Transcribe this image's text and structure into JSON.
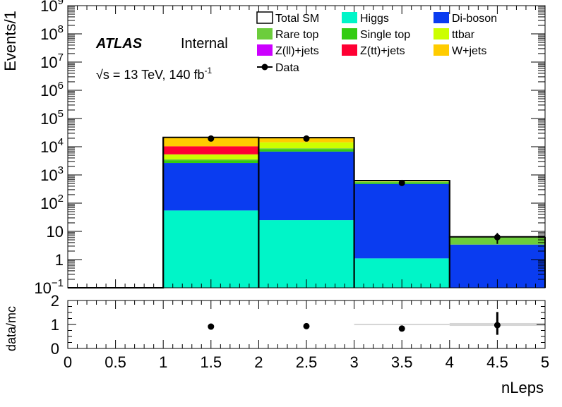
{
  "chart_data": {
    "type": "bar",
    "stacked": true,
    "log_y": true,
    "xlabel": "nLeps",
    "ylabel": "Events/1",
    "xlim": [
      0,
      5
    ],
    "ylim": [
      0.1,
      1000000000
    ],
    "bins": [
      [
        0,
        1
      ],
      [
        1,
        2
      ],
      [
        2,
        3
      ],
      [
        3,
        4
      ],
      [
        4,
        5
      ]
    ],
    "x_ticks": [
      "0",
      "0.5",
      "1",
      "1.5",
      "2",
      "2.5",
      "3",
      "3.5",
      "4",
      "4.5",
      "5"
    ],
    "y_ticks": [
      {
        "value": 0.1,
        "base": "10",
        "exp": "−1"
      },
      {
        "value": 1,
        "base": "1",
        "exp": ""
      },
      {
        "value": 10,
        "base": "10",
        "exp": ""
      },
      {
        "value": 100,
        "base": "10",
        "exp": "2"
      },
      {
        "value": 1000,
        "base": "10",
        "exp": "3"
      },
      {
        "value": 10000,
        "base": "10",
        "exp": "4"
      },
      {
        "value": 100000,
        "base": "10",
        "exp": "5"
      },
      {
        "value": 1000000,
        "base": "10",
        "exp": "6"
      },
      {
        "value": 10000000,
        "base": "10",
        "exp": "7"
      },
      {
        "value": 100000000,
        "base": "10",
        "exp": "8"
      },
      {
        "value": 1000000000,
        "base": "10",
        "exp": "9"
      }
    ],
    "series": [
      {
        "name": "Higgs",
        "color": "#00f5c8",
        "values": [
          0,
          55,
          25,
          1.1,
          0
        ]
      },
      {
        "name": "Di-boson",
        "color": "#0a3cf0",
        "values": [
          0,
          2600,
          6700,
          480,
          3.4
        ]
      },
      {
        "name": "Single top",
        "color": "#33cc11",
        "values": [
          0,
          600,
          1500,
          50,
          0
        ]
      },
      {
        "name": "Rare top",
        "color": "#6ccd3c",
        "values": [
          0,
          300,
          600,
          40,
          2.8
        ]
      },
      {
        "name": "ttbar",
        "color": "#ccff00",
        "values": [
          0,
          1800,
          5500,
          20,
          0.2
        ]
      },
      {
        "name": "Z(tt)+jets",
        "color": "#ff0033",
        "values": [
          0,
          5000,
          0,
          0,
          0
        ]
      },
      {
        "name": "Z(ll)+jets",
        "color": "#cc00ff",
        "values": [
          0,
          0,
          0,
          0,
          0
        ]
      },
      {
        "name": "W+jets",
        "color": "#ffcc00",
        "values": [
          0,
          11000,
          6000,
          0,
          0
        ]
      }
    ],
    "total_sm": {
      "name": "Total SM",
      "values": [
        0.1,
        21500,
        21000,
        630,
        6.4
      ]
    },
    "data": {
      "name": "Data",
      "x": [
        1.5,
        2.5,
        3.5,
        4.5
      ],
      "y": [
        19500,
        19500,
        520,
        6.2
      ],
      "yerr_low": [
        0,
        0,
        0,
        2.6
      ],
      "yerr_high": [
        0,
        0,
        0,
        2.6
      ]
    },
    "ratio": {
      "ylabel": "data/mc",
      "ylim": [
        0,
        2
      ],
      "y_ticks": [
        "0",
        "1",
        "2"
      ],
      "x": [
        1.5,
        2.5,
        3.5,
        4.5
      ],
      "y": [
        0.91,
        0.93,
        0.83,
        0.97
      ],
      "yerr_low": [
        0,
        0,
        0,
        0.4
      ],
      "yerr_high": [
        0,
        0,
        0,
        0.55
      ],
      "uncertainty_band": [
        {
          "x_range": [
            3,
            4
          ],
          "half_width": 0.03
        },
        {
          "x_range": [
            4,
            5
          ],
          "half_width": 0.06
        }
      ]
    },
    "legend": {
      "placement": "top-right",
      "entries": [
        {
          "label": "Total SM",
          "color": "#ffffff",
          "kind": "box"
        },
        {
          "label": "Higgs",
          "color": "#00f5c8",
          "kind": "fill"
        },
        {
          "label": "Di-boson",
          "color": "#0a3cf0",
          "kind": "fill"
        },
        {
          "label": "Rare top",
          "color": "#6ccd3c",
          "kind": "fill"
        },
        {
          "label": "Single top",
          "color": "#33cc11",
          "kind": "fill"
        },
        {
          "label": "ttbar",
          "color": "#ccff00",
          "kind": "fill"
        },
        {
          "label": "Z(ll)+jets",
          "color": "#cc00ff",
          "kind": "fill"
        },
        {
          "label": "Z(tt)+jets",
          "color": "#ff0033",
          "kind": "fill"
        },
        {
          "label": "W+jets",
          "color": "#ffcc00",
          "kind": "fill"
        },
        {
          "label": "Data",
          "color": "#000000",
          "kind": "marker"
        }
      ]
    },
    "annotations": {
      "atlas": "ATLAS",
      "internal": "Internal",
      "sqrt_s": "√s",
      "energy": " = 13 TeV, 140 fb",
      "lumi_exp": "-1"
    }
  }
}
